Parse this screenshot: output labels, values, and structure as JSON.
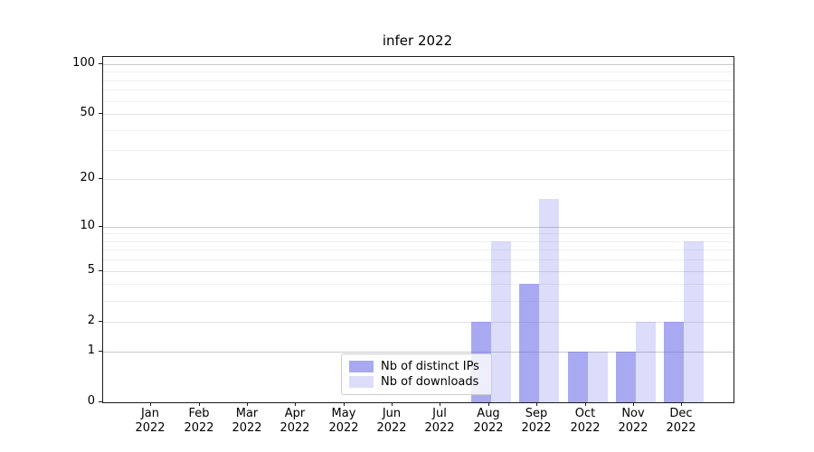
{
  "chart_data": {
    "type": "bar",
    "title": "infer 2022",
    "categories": [
      "Jan 2022",
      "Feb 2022",
      "Mar 2022",
      "Apr 2022",
      "May 2022",
      "Jun 2022",
      "Jul 2022",
      "Aug 2022",
      "Sep 2022",
      "Oct 2022",
      "Nov 2022",
      "Dec 2022"
    ],
    "x_tick_lines": [
      {
        "month": "Jan",
        "year": "2022"
      },
      {
        "month": "Feb",
        "year": "2022"
      },
      {
        "month": "Mar",
        "year": "2022"
      },
      {
        "month": "Apr",
        "year": "2022"
      },
      {
        "month": "May",
        "year": "2022"
      },
      {
        "month": "Jun",
        "year": "2022"
      },
      {
        "month": "Jul",
        "year": "2022"
      },
      {
        "month": "Aug",
        "year": "2022"
      },
      {
        "month": "Sep",
        "year": "2022"
      },
      {
        "month": "Oct",
        "year": "2022"
      },
      {
        "month": "Nov",
        "year": "2022"
      },
      {
        "month": "Dec",
        "year": "2022"
      }
    ],
    "series": [
      {
        "name": "Nb of distinct IPs",
        "color": "rgba(97,99,230,0.55)",
        "values": [
          0,
          0,
          0,
          0,
          0,
          0,
          0,
          2,
          4,
          1,
          1,
          2
        ]
      },
      {
        "name": "Nb of downloads",
        "color": "rgba(97,99,230,0.22)",
        "values": [
          0,
          0,
          0,
          0,
          0,
          0,
          0,
          8,
          15,
          1,
          2,
          8
        ]
      }
    ],
    "y_axis": {
      "scale": "log10(1+y)",
      "tick_labels": [
        0,
        1,
        2,
        5,
        10,
        20,
        50,
        100
      ],
      "max": 110
    },
    "gridlines": {
      "strong": {
        "values": [
          1,
          10,
          100
        ],
        "color": "#c9c9c9"
      },
      "medium": {
        "values": [
          2,
          5,
          20,
          50
        ],
        "color": "#e2e2e2"
      },
      "faint": {
        "values": [
          3,
          4,
          6,
          7,
          8,
          9,
          30,
          40,
          60,
          70,
          80,
          90
        ],
        "color": "#f0f0f0"
      }
    },
    "legend_position": "lower center",
    "grid": "horizontal major+minor",
    "background": "#ffffff",
    "spine_color": "#1a1a1a"
  }
}
